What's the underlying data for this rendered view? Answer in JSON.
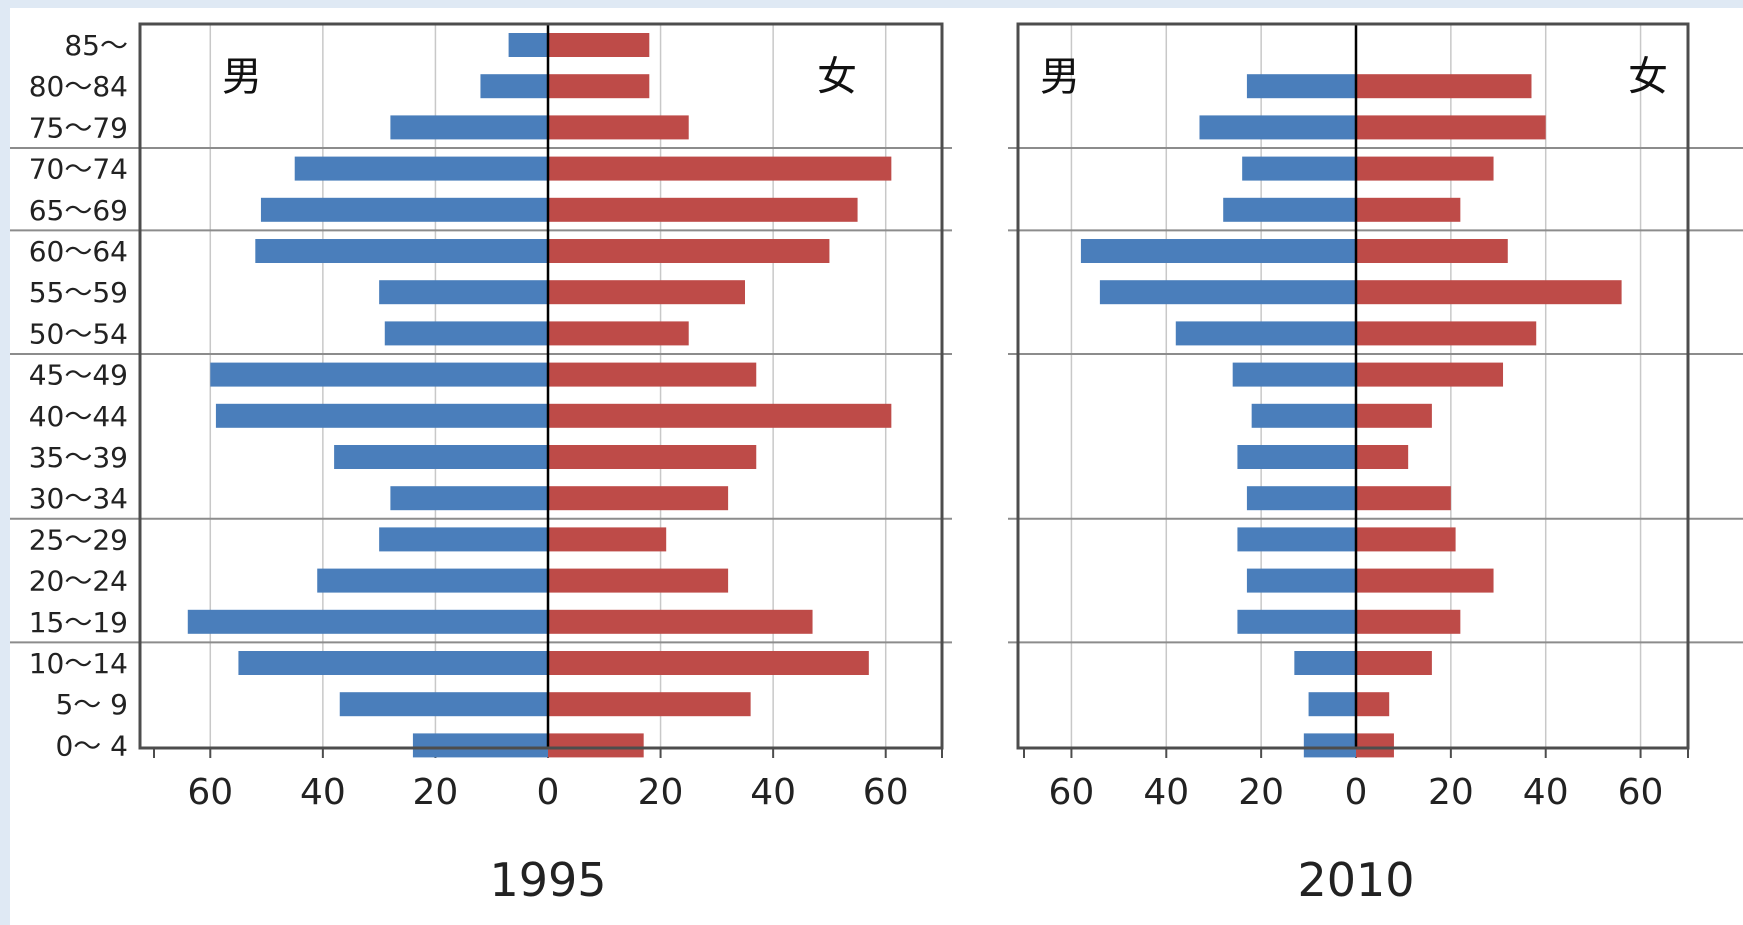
{
  "chart_data": {
    "type": "bar",
    "orientation": "horizontal",
    "age_groups": [
      "85～",
      "80～84",
      "75～79",
      "70～74",
      "65～69",
      "60～64",
      "55～59",
      "50～54",
      "45～49",
      "40～44",
      "35～39",
      "30～34",
      "25～29",
      "20～24",
      "15～19",
      "10～14",
      "5～ 9",
      "0～ 4"
    ],
    "tick_values": [
      60,
      40,
      20,
      0,
      20,
      40,
      60
    ],
    "xlim": [
      -70,
      70
    ],
    "colors": {
      "male": "#4a7ebb",
      "female": "#be4b48"
    },
    "panels": [
      {
        "year": "1995",
        "left_label": "男",
        "right_label": "女",
        "male": [
          7,
          12,
          28,
          45,
          51,
          52,
          30,
          29,
          60,
          59,
          38,
          28,
          30,
          41,
          64,
          55,
          37,
          24
        ],
        "female": [
          18,
          18,
          25,
          61,
          55,
          50,
          35,
          25,
          37,
          61,
          37,
          32,
          21,
          32,
          47,
          57,
          36,
          17
        ]
      },
      {
        "year": "2010",
        "left_label": "男",
        "right_label": "女",
        "male": [
          0,
          23,
          33,
          24,
          28,
          58,
          54,
          38,
          26,
          22,
          25,
          23,
          25,
          23,
          25,
          13,
          10,
          11
        ],
        "female": [
          0,
          37,
          40,
          29,
          22,
          32,
          56,
          38,
          31,
          16,
          11,
          20,
          21,
          29,
          22,
          16,
          7,
          8
        ]
      }
    ]
  }
}
